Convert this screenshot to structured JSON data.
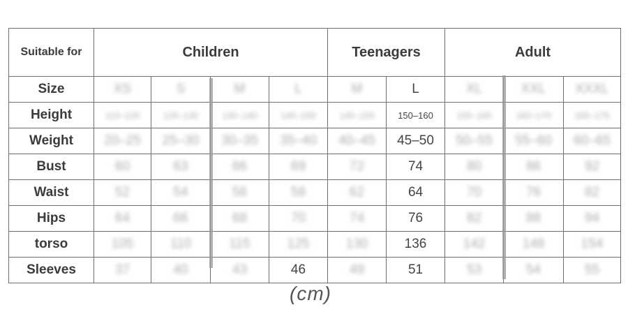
{
  "table": {
    "header": {
      "suitable_for": "Suitable for",
      "groups": [
        "Children",
        "Teenagers",
        "Adult"
      ]
    },
    "rows": [
      {
        "label": "Size",
        "values": [
          "XS",
          "S",
          "M",
          "L",
          "M",
          "L",
          "XL",
          "XXL",
          "XXXL"
        ]
      },
      {
        "label": "Height",
        "values": [
          "110–120",
          "120–130",
          "130–140",
          "140–150",
          "145–155",
          "150–160",
          "155–165",
          "160–170",
          "165–175"
        ]
      },
      {
        "label": "Weight",
        "values": [
          "20–25",
          "25–30",
          "30–35",
          "35–40",
          "40–45",
          "45–50",
          "50–55",
          "55–60",
          "60–65"
        ]
      },
      {
        "label": "Bust",
        "values": [
          "60",
          "63",
          "66",
          "69",
          "72",
          "74",
          "80",
          "86",
          "92"
        ]
      },
      {
        "label": "Waist",
        "values": [
          "52",
          "54",
          "56",
          "58",
          "62",
          "64",
          "70",
          "76",
          "82"
        ]
      },
      {
        "label": "Hips",
        "values": [
          "64",
          "66",
          "68",
          "70",
          "74",
          "76",
          "82",
          "88",
          "94"
        ]
      },
      {
        "label": "torso",
        "values": [
          "105",
          "110",
          "115",
          "125",
          "130",
          "136",
          "142",
          "148",
          "154"
        ]
      },
      {
        "label": "Sleeves",
        "values": [
          "37",
          "40",
          "43",
          "46",
          "49",
          "51",
          "53",
          "54",
          "55"
        ]
      }
    ]
  },
  "unit_label": "(cm)"
}
